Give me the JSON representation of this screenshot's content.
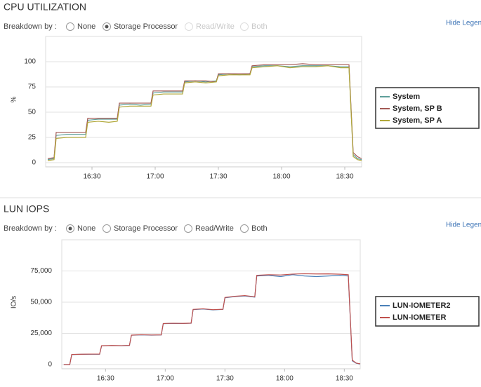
{
  "chart_data": [
    {
      "type": "line",
      "title": "CPU UTILIZATION",
      "ylabel": "%",
      "x": [
        "16:09",
        "16:12",
        "16:13",
        "16:18",
        "16:23",
        "16:27",
        "16:28",
        "16:33",
        "16:38",
        "16:42",
        "16:43",
        "16:48",
        "16:53",
        "16:58",
        "16:59",
        "17:04",
        "17:09",
        "17:13",
        "17:14",
        "17:19",
        "17:24",
        "17:29",
        "17:30",
        "17:35",
        "17:40",
        "17:45",
        "17:46",
        "17:52",
        "17:58",
        "18:04",
        "18:10",
        "18:16",
        "18:22",
        "18:28",
        "18:32",
        "18:34",
        "18:36",
        "18:38"
      ],
      "series": [
        {
          "name": "System",
          "color": "#5f9f9a",
          "values": [
            3,
            4,
            27,
            28,
            28,
            28,
            42,
            43,
            43,
            43,
            57,
            58,
            57,
            58,
            69,
            70,
            70,
            70,
            80,
            81,
            80,
            81,
            87,
            88,
            87,
            88,
            95,
            96,
            96,
            95,
            96,
            96,
            96,
            95,
            95,
            8,
            4,
            3
          ]
        },
        {
          "name": "System, SP B",
          "color": "#a35a55",
          "values": [
            4,
            5,
            30,
            30,
            30,
            30,
            44,
            44,
            44,
            44,
            59,
            59,
            59,
            59,
            71,
            71,
            71,
            71,
            81,
            81,
            81,
            80,
            88,
            88,
            88,
            88,
            96,
            97,
            97,
            97,
            98,
            97,
            97,
            97,
            97,
            10,
            6,
            4
          ]
        },
        {
          "name": "System, SP A",
          "color": "#b1a83a",
          "values": [
            2,
            3,
            24,
            25,
            25,
            25,
            40,
            41,
            40,
            41,
            55,
            56,
            56,
            56,
            67,
            68,
            68,
            68,
            79,
            80,
            79,
            80,
            86,
            87,
            87,
            87,
            94,
            95,
            96,
            94,
            95,
            95,
            96,
            94,
            94,
            6,
            3,
            2
          ]
        }
      ],
      "xlim": [
        "16:08",
        "18:38"
      ],
      "xticks": [
        "16:30",
        "17:00",
        "17:30",
        "18:00",
        "18:30"
      ],
      "ylim": [
        0,
        125
      ],
      "yticks": [
        0,
        25,
        50,
        75,
        100
      ],
      "grid": true
    },
    {
      "type": "line",
      "title": "LUN IOPS",
      "ylabel": "IO/s",
      "x": [
        "16:09",
        "16:12",
        "16:13",
        "16:18",
        "16:23",
        "16:27",
        "16:28",
        "16:33",
        "16:38",
        "16:42",
        "16:43",
        "16:48",
        "16:53",
        "16:58",
        "16:59",
        "17:04",
        "17:09",
        "17:13",
        "17:14",
        "17:19",
        "17:24",
        "17:29",
        "17:30",
        "17:35",
        "17:40",
        "17:45",
        "17:46",
        "17:52",
        "17:58",
        "18:04",
        "18:10",
        "18:16",
        "18:22",
        "18:28",
        "18:32",
        "18:34",
        "18:36",
        "18:38"
      ],
      "series": [
        {
          "name": "LUN-IOMETER2",
          "color": "#4a80b8",
          "values": [
            0,
            0,
            8000,
            8200,
            8300,
            8300,
            15000,
            15200,
            15100,
            15300,
            23500,
            23800,
            23600,
            23700,
            32800,
            33000,
            32900,
            33100,
            44000,
            44500,
            43800,
            44200,
            53500,
            54500,
            55000,
            54000,
            71000,
            71500,
            70500,
            72000,
            71000,
            70500,
            71000,
            71500,
            71000,
            3000,
            1000,
            500
          ]
        },
        {
          "name": "LUN-IOMETER",
          "color": "#c0504d",
          "values": [
            0,
            0,
            8100,
            8300,
            8400,
            8400,
            15100,
            15300,
            15200,
            15400,
            23600,
            23900,
            23700,
            23800,
            32900,
            33100,
            33000,
            33200,
            44200,
            44700,
            44000,
            44300,
            53800,
            54700,
            55300,
            54300,
            71500,
            72000,
            71800,
            72500,
            72800,
            72600,
            72700,
            72400,
            72000,
            3500,
            1200,
            600
          ]
        }
      ],
      "xlim": [
        "16:08",
        "18:38"
      ],
      "xticks": [
        "16:30",
        "17:00",
        "17:30",
        "18:00",
        "18:30"
      ],
      "ylim": [
        0,
        100000
      ],
      "yticks": [
        0,
        {
          "value": 25000,
          "label": "25,000"
        },
        {
          "value": 50000,
          "label": "50,000"
        },
        {
          "value": 75000,
          "label": "75,000"
        }
      ],
      "grid": true
    }
  ],
  "controls": [
    {
      "breakdown_label": "Breakdown by :",
      "options": [
        "None",
        "Storage Processor",
        "Read/Write",
        "Both"
      ],
      "selected": 1,
      "disabled": [
        2,
        3
      ],
      "hide_legend": "Hide Legen"
    },
    {
      "breakdown_label": "Breakdown by :",
      "options": [
        "None",
        "Storage Processor",
        "Read/Write",
        "Both"
      ],
      "selected": 0,
      "disabled": [],
      "hide_legend": "Hide Legen"
    }
  ]
}
